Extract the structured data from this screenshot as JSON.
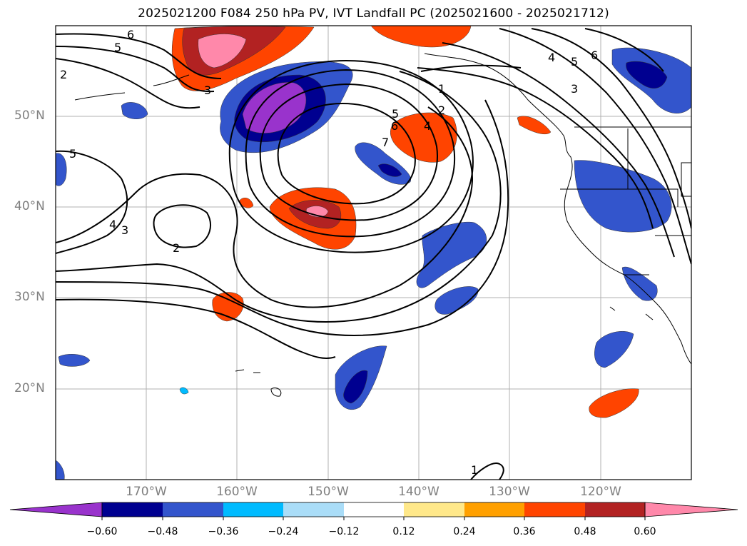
{
  "title": "2025021200 F084 250 hPa PV, IVT Landfall PC (2025021600 - 2025021712)",
  "map": {
    "extent": {
      "lon": [
        -180,
        -110
      ],
      "lat": [
        10,
        60
      ]
    },
    "lat_labels": [
      {
        "lat": 50,
        "text": "50°N"
      },
      {
        "lat": 40,
        "text": "40°N"
      },
      {
        "lat": 30,
        "text": "30°N"
      },
      {
        "lat": 20,
        "text": "20°N"
      }
    ],
    "lon_labels": [
      {
        "lon": -170,
        "text": "170°W"
      },
      {
        "lon": -160,
        "text": "160°W"
      },
      {
        "lon": -150,
        "text": "150°W"
      },
      {
        "lon": -140,
        "text": "140°W"
      },
      {
        "lon": -130,
        "text": "130°W"
      },
      {
        "lon": -120,
        "text": "120°W"
      }
    ],
    "contour_labels": [
      "6",
      "5",
      "2",
      "5",
      "4",
      "3",
      "2",
      "3",
      "1",
      "2",
      "5",
      "6",
      "4",
      "7",
      "4",
      "5",
      "6",
      "3",
      "1"
    ],
    "grid": true
  },
  "colorbar": {
    "colors": [
      "#9933cc",
      "#000090",
      "#3355cc",
      "#00bbff",
      "#aaddf8",
      "#ffffff",
      "#ffe88a",
      "#ffa000",
      "#ff4400",
      "#b22222",
      "#ff88aa"
    ],
    "tick_labels": [
      "−0.60",
      "−0.48",
      "−0.36",
      "−0.24",
      "−0.12",
      "0.12",
      "0.24",
      "0.36",
      "0.48",
      "0.60"
    ],
    "extend": "both"
  }
}
